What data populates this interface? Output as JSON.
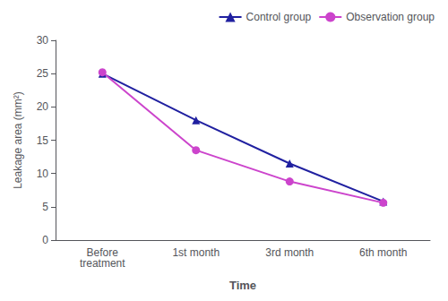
{
  "chart_data": {
    "type": "line",
    "xlabel": "Time",
    "ylabel": "Leakage area (mm²)",
    "categories": [
      "Before\ntreatment",
      "1st month",
      "3rd month",
      "6th month"
    ],
    "series": [
      {
        "name": "Control group",
        "color": "#2020a0",
        "marker": "triangle",
        "values": [
          25.0,
          18.0,
          11.5,
          5.8
        ]
      },
      {
        "name": "Observation group",
        "color": "#cc44cc",
        "marker": "circle",
        "values": [
          25.2,
          13.5,
          8.8,
          5.6
        ]
      }
    ],
    "ylim": [
      0,
      30
    ],
    "yticks": [
      0,
      5,
      10,
      15,
      20,
      25,
      30
    ],
    "grid": false,
    "legend": "upper right"
  }
}
